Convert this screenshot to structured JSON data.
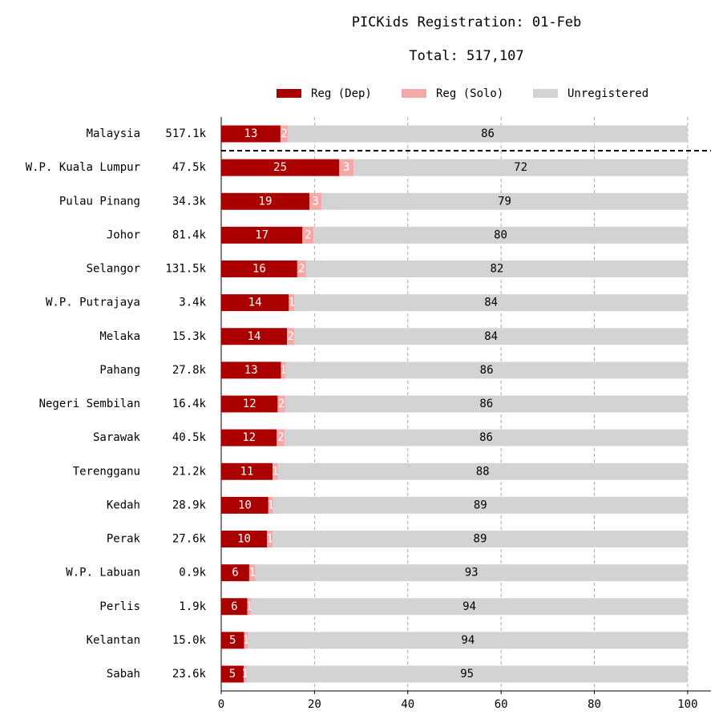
{
  "chart_data": {
    "type": "stacked-bar-horizontal",
    "title": "PICKids Registration: 01-Feb",
    "subtitle": "Total: 517,107",
    "categories": [
      "Malaysia",
      "W.P. Kuala Lumpur",
      "Pulau Pinang",
      "Johor",
      "Selangor",
      "W.P. Putrajaya",
      "Melaka",
      "Pahang",
      "Negeri Sembilan",
      "Sarawak",
      "Terengganu",
      "Kedah",
      "Perak",
      "W.P. Labuan",
      "Perlis",
      "Kelantan",
      "Sabah"
    ],
    "category_totals": [
      "517.1k",
      "47.5k",
      "34.3k",
      "81.4k",
      "131.5k",
      "3.4k",
      "15.3k",
      "27.8k",
      "16.4k",
      "40.5k",
      "21.2k",
      "28.9k",
      "27.6k",
      "0.9k",
      "1.9k",
      "15.0k",
      "23.6k"
    ],
    "series": [
      {
        "name": "Reg (Dep)",
        "color": "#aa0000",
        "label_color": "#ffffff",
        "values": [
          12.7,
          25.3,
          18.9,
          17.4,
          16.3,
          14.5,
          14.1,
          12.8,
          12.1,
          11.9,
          11.0,
          10.1,
          9.8,
          6.0,
          5.6,
          4.9,
          4.8
        ],
        "value_labels": [
          "13",
          "25",
          "19",
          "17",
          "16",
          "14",
          "14",
          "13",
          "12",
          "12",
          "11",
          "10",
          "10",
          "6",
          "6",
          "5",
          "5"
        ]
      },
      {
        "name": "Reg (Solo)",
        "color": "#f4a9a8",
        "label_color": "#ffffff",
        "values": [
          1.6,
          3.1,
          2.6,
          2.4,
          1.9,
          1.2,
          1.6,
          1.0,
          1.6,
          1.7,
          1.1,
          1.0,
          1.2,
          1.3,
          0.8,
          0.9,
          0.6
        ],
        "value_labels": [
          "2",
          "3",
          "3",
          "2",
          "2",
          "1",
          "2",
          "1",
          "2",
          "2",
          "1",
          "1",
          "1",
          "1",
          "1",
          "1",
          "1"
        ]
      },
      {
        "name": "Unregistered",
        "color": "#d3d3d3",
        "label_color": "#000000",
        "values": [
          85.7,
          71.6,
          78.5,
          80.2,
          81.8,
          84.3,
          84.3,
          86.2,
          86.3,
          86.4,
          87.9,
          88.9,
          89.0,
          92.7,
          93.6,
          94.2,
          94.6
        ],
        "value_labels": [
          "86",
          "72",
          "79",
          "80",
          "82",
          "84",
          "84",
          "86",
          "86",
          "86",
          "88",
          "89",
          "89",
          "93",
          "94",
          "94",
          "95"
        ]
      }
    ],
    "xlim": [
      0,
      105
    ],
    "xticks": [
      0,
      20,
      40,
      60,
      80,
      100
    ],
    "grid": true
  }
}
